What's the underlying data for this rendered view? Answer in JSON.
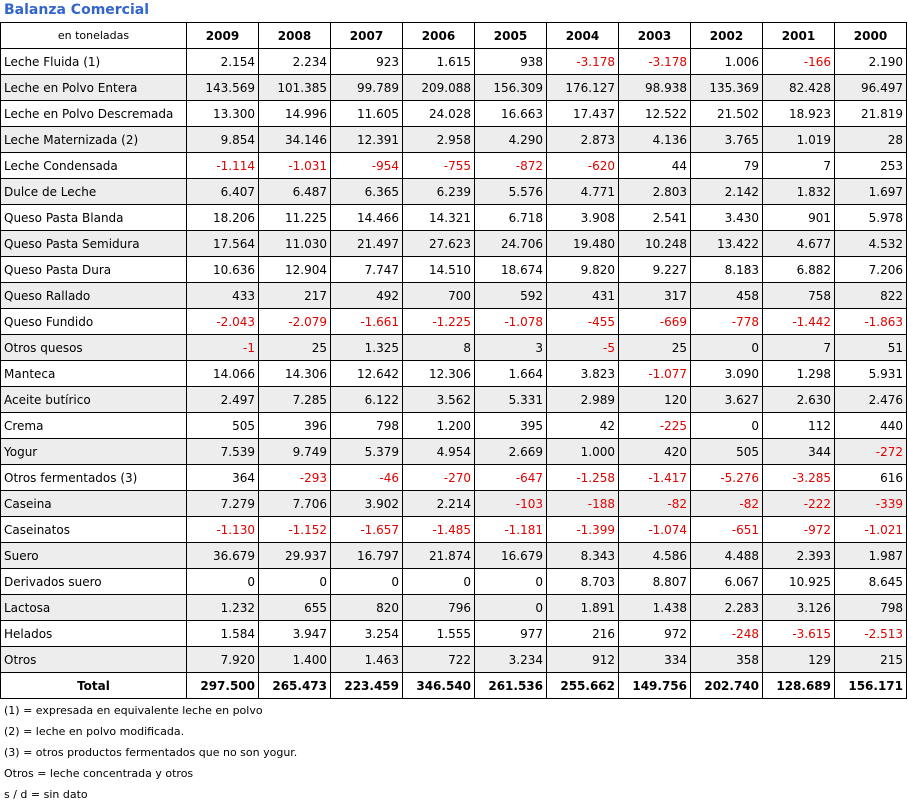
{
  "title": "Balanza Comercial",
  "unit_label": "en toneladas",
  "years": [
    "2009",
    "2008",
    "2007",
    "2006",
    "2005",
    "2004",
    "2003",
    "2002",
    "2001",
    "2000"
  ],
  "rows": [
    {
      "label": "Leche Fluida (1)",
      "values": [
        "2.154",
        "2.234",
        "923",
        "1.615",
        "938",
        "-3.178",
        "-3.178",
        "1.006",
        "-166",
        "2.190"
      ]
    },
    {
      "label": "Leche en Polvo Entera",
      "values": [
        "143.569",
        "101.385",
        "99.789",
        "209.088",
        "156.309",
        "176.127",
        "98.938",
        "135.369",
        "82.428",
        "96.497"
      ]
    },
    {
      "label": "Leche en Polvo Descremada",
      "values": [
        "13.300",
        "14.996",
        "11.605",
        "24.028",
        "16.663",
        "17.437",
        "12.522",
        "21.502",
        "18.923",
        "21.819"
      ]
    },
    {
      "label": "Leche Maternizada (2)",
      "values": [
        "9.854",
        "34.146",
        "12.391",
        "2.958",
        "4.290",
        "2.873",
        "4.136",
        "3.765",
        "1.019",
        "28"
      ]
    },
    {
      "label": "Leche Condensada",
      "values": [
        "-1.114",
        "-1.031",
        "-954",
        "-755",
        "-872",
        "-620",
        "44",
        "79",
        "7",
        "253"
      ]
    },
    {
      "label": "Dulce de Leche",
      "values": [
        "6.407",
        "6.487",
        "6.365",
        "6.239",
        "5.576",
        "4.771",
        "2.803",
        "2.142",
        "1.832",
        "1.697"
      ]
    },
    {
      "label": "Queso Pasta Blanda",
      "values": [
        "18.206",
        "11.225",
        "14.466",
        "14.321",
        "6.718",
        "3.908",
        "2.541",
        "3.430",
        "901",
        "5.978"
      ]
    },
    {
      "label": "Queso Pasta Semidura",
      "values": [
        "17.564",
        "11.030",
        "21.497",
        "27.623",
        "24.706",
        "19.480",
        "10.248",
        "13.422",
        "4.677",
        "4.532"
      ]
    },
    {
      "label": "Queso Pasta Dura",
      "values": [
        "10.636",
        "12.904",
        "7.747",
        "14.510",
        "18.674",
        "9.820",
        "9.227",
        "8.183",
        "6.882",
        "7.206"
      ]
    },
    {
      "label": "Queso Rallado",
      "values": [
        "433",
        "217",
        "492",
        "700",
        "592",
        "431",
        "317",
        "458",
        "758",
        "822"
      ]
    },
    {
      "label": "Queso Fundido",
      "values": [
        "-2.043",
        "-2.079",
        "-1.661",
        "-1.225",
        "-1.078",
        "-455",
        "-669",
        "-778",
        "-1.442",
        "-1.863"
      ]
    },
    {
      "label": "Otros quesos",
      "values": [
        "-1",
        "25",
        "1.325",
        "8",
        "3",
        "-5",
        "25",
        "0",
        "7",
        "51"
      ]
    },
    {
      "label": "Manteca",
      "values": [
        "14.066",
        "14.306",
        "12.642",
        "12.306",
        "1.664",
        "3.823",
        "-1.077",
        "3.090",
        "1.298",
        "5.931"
      ]
    },
    {
      "label": "Aceite butírico",
      "values": [
        "2.497",
        "7.285",
        "6.122",
        "3.562",
        "5.331",
        "2.989",
        "120",
        "3.627",
        "2.630",
        "2.476"
      ]
    },
    {
      "label": "Crema",
      "values": [
        "505",
        "396",
        "798",
        "1.200",
        "395",
        "42",
        "-225",
        "0",
        "112",
        "440"
      ]
    },
    {
      "label": "Yogur",
      "values": [
        "7.539",
        "9.749",
        "5.379",
        "4.954",
        "2.669",
        "1.000",
        "420",
        "505",
        "344",
        "-272"
      ]
    },
    {
      "label": "Otros fermentados (3)",
      "values": [
        "364",
        "-293",
        "-46",
        "-270",
        "-647",
        "-1.258",
        "-1.417",
        "-5.276",
        "-3.285",
        "616"
      ]
    },
    {
      "label": "Caseina",
      "values": [
        "7.279",
        "7.706",
        "3.902",
        "2.214",
        "-103",
        "-188",
        "-82",
        "-82",
        "-222",
        "-339"
      ]
    },
    {
      "label": "Caseinatos",
      "values": [
        "-1.130",
        "-1.152",
        "-1.657",
        "-1.485",
        "-1.181",
        "-1.399",
        "-1.074",
        "-651",
        "-972",
        "-1.021"
      ]
    },
    {
      "label": "Suero",
      "values": [
        "36.679",
        "29.937",
        "16.797",
        "21.874",
        "16.679",
        "8.343",
        "4.586",
        "4.488",
        "2.393",
        "1.987"
      ]
    },
    {
      "label": "Derivados suero",
      "values": [
        "0",
        "0",
        "0",
        "0",
        "0",
        "8.703",
        "8.807",
        "6.067",
        "10.925",
        "8.645"
      ]
    },
    {
      "label": "Lactosa",
      "values": [
        "1.232",
        "655",
        "820",
        "796",
        "0",
        "1.891",
        "1.438",
        "2.283",
        "3.126",
        "798"
      ]
    },
    {
      "label": "Helados",
      "values": [
        "1.584",
        "3.947",
        "3.254",
        "1.555",
        "977",
        "216",
        "972",
        "-248",
        "-3.615",
        "-2.513"
      ]
    },
    {
      "label": "Otros",
      "values": [
        "7.920",
        "1.400",
        "1.463",
        "722",
        "3.234",
        "912",
        "334",
        "358",
        "129",
        "215"
      ]
    }
  ],
  "total": {
    "label": "Total",
    "values": [
      "297.500",
      "265.473",
      "223.459",
      "346.540",
      "261.536",
      "255.662",
      "149.756",
      "202.740",
      "128.689",
      "156.171"
    ]
  },
  "notes": [
    "(1) = expresada en equivalente leche en polvo",
    "(2) = leche en polvo modificada.",
    "(3) = otros productos fermentados que no son yogur.",
    "Otros = leche concentrada y otros",
    "s / d = sin dato"
  ],
  "colors": {
    "title": "#3366cc",
    "negative": "#e00000",
    "row_shade": "#ededed"
  }
}
